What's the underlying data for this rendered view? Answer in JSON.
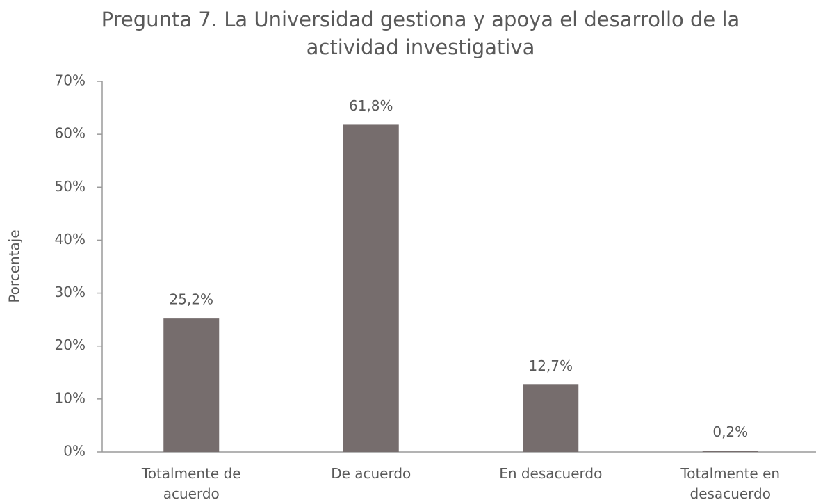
{
  "chart_data": {
    "type": "bar",
    "title": "Pregunta 7. La Universidad gestiona y apoya el desarrollo de la actividad investigativa",
    "y_label": "Porcentaje",
    "categories": [
      "Totalmente de acuerdo",
      "De acuerdo",
      "En desacuerdo",
      "Totalmente en desacuerdo"
    ],
    "values": [
      25.2,
      61.8,
      12.7,
      0.2
    ],
    "value_labels": [
      "25,2%",
      "61,8%",
      "12,7%",
      "0,2%"
    ],
    "color": "#766d6d",
    "ylim": [
      0,
      70
    ],
    "yticks": [
      {
        "value": 0,
        "label": "0%"
      },
      {
        "value": 10,
        "label": "10%"
      },
      {
        "value": 20,
        "label": "20%"
      },
      {
        "value": 30,
        "label": "30%"
      },
      {
        "value": 40,
        "label": "40%"
      },
      {
        "value": 50,
        "label": "50%"
      },
      {
        "value": 60,
        "label": "60%"
      },
      {
        "value": 70,
        "label": "70%"
      }
    ],
    "grid": false
  }
}
